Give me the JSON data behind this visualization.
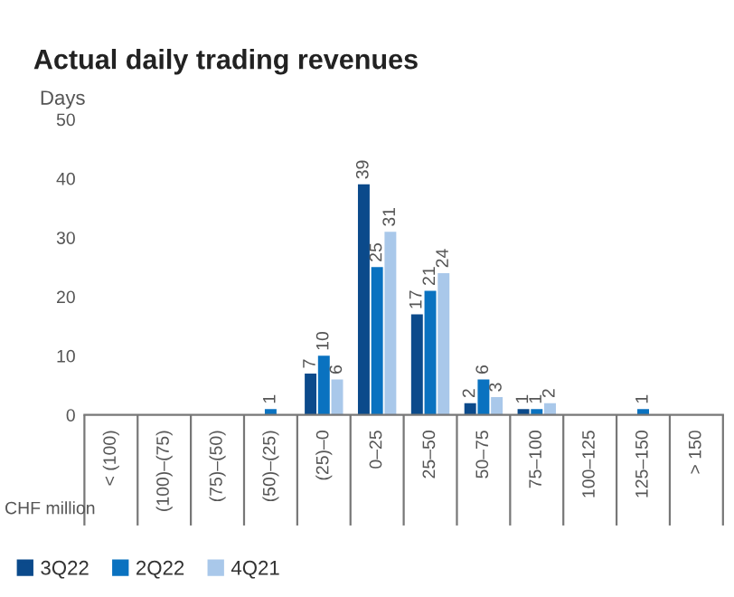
{
  "chart_data": {
    "type": "bar",
    "title": "Actual daily trading revenues",
    "ylabel": "Days",
    "xlabel": "CHF million",
    "categories": [
      "< (100)",
      "(100)–(75)",
      "(75)–(50)",
      "(50)–(25)",
      "(25)–0",
      "0–25",
      "25–50",
      "50–75",
      "75–100",
      "100–125",
      "125–150",
      "> 150"
    ],
    "series": [
      {
        "name": "3Q22",
        "color": "#0b4a8b",
        "values": [
          0,
          0,
          0,
          0,
          7,
          39,
          17,
          2,
          1,
          0,
          0,
          0
        ],
        "value_labels": [
          null,
          null,
          null,
          null,
          "7",
          "39",
          "17",
          "2",
          "1",
          null,
          null,
          null
        ]
      },
      {
        "name": "2Q22",
        "color": "#0a72c0",
        "values": [
          0,
          0,
          0,
          1,
          10,
          25,
          21,
          6,
          1,
          0,
          1,
          0
        ],
        "value_labels": [
          null,
          null,
          null,
          "1",
          "10",
          "25",
          "21",
          "6",
          "1",
          null,
          "1",
          null
        ]
      },
      {
        "name": "4Q21",
        "color": "#a9c8ea",
        "values": [
          0,
          0,
          0,
          0,
          6,
          31,
          24,
          3,
          2,
          0,
          0,
          0
        ],
        "value_labels": [
          null,
          null,
          null,
          null,
          "6",
          "31",
          "24",
          "3",
          "2",
          null,
          null,
          null
        ]
      }
    ],
    "ylim": [
      0,
      50
    ],
    "yticks": [
      0,
      10,
      20,
      30,
      40,
      50
    ],
    "grid": false,
    "legend": "bottom left"
  }
}
